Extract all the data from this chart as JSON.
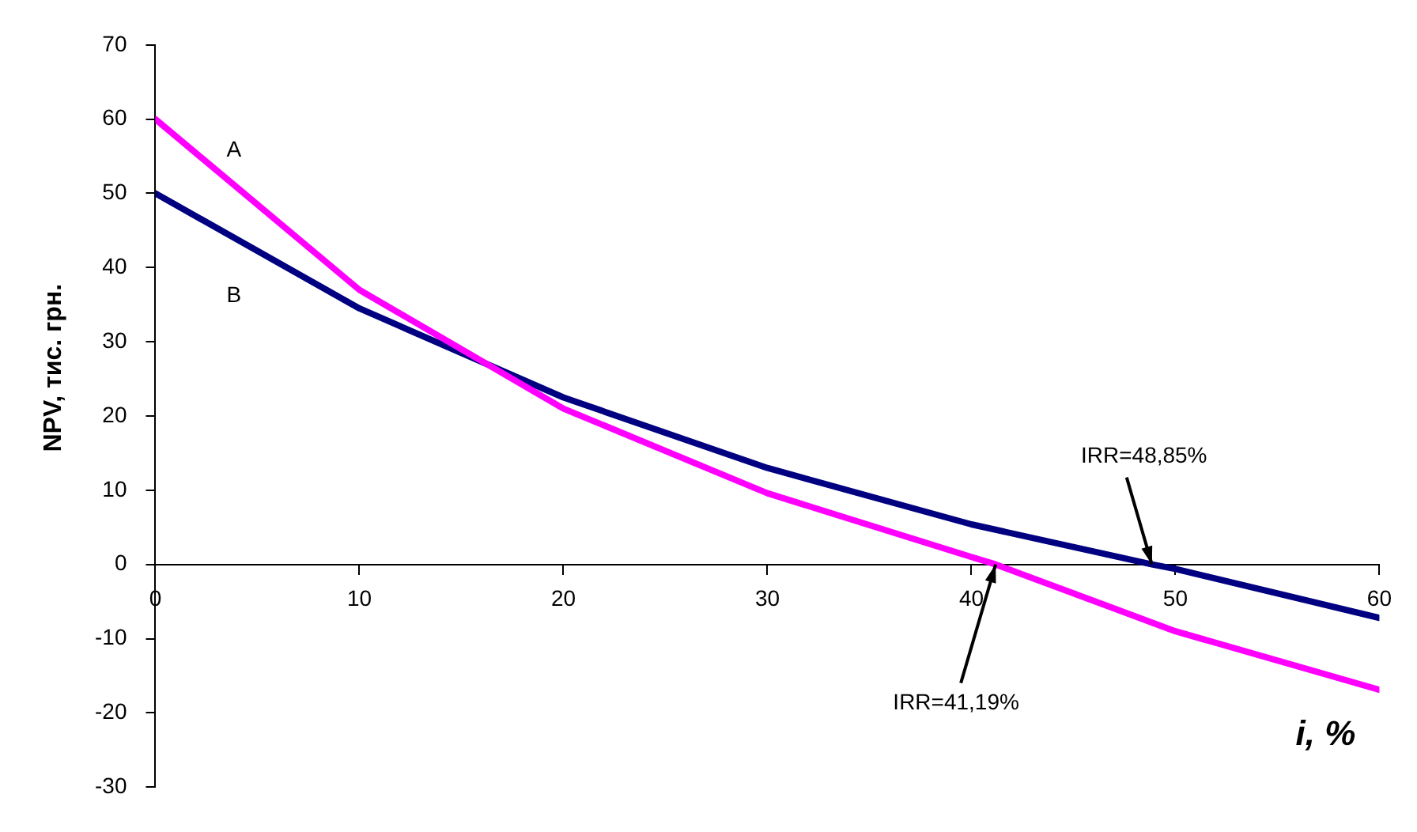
{
  "chart_data": {
    "type": "line",
    "xlabel": "i, %",
    "ylabel": "NPV, тис. грн.",
    "xlim": [
      0,
      60
    ],
    "xticks": [
      0,
      10,
      20,
      30,
      40,
      50,
      60
    ],
    "ylim": [
      -30,
      70
    ],
    "yticks": [
      -30,
      -20,
      -10,
      0,
      10,
      20,
      30,
      40,
      50,
      60,
      70
    ],
    "grid": false,
    "legend": false,
    "marker": "none",
    "line_style": "solid",
    "series": [
      {
        "name": "A",
        "color": "#ff00ff",
        "x": [
          0,
          10,
          20,
          30,
          40,
          41.19,
          50,
          60
        ],
        "values": [
          60,
          37,
          21,
          9.6,
          1,
          0,
          -9,
          -16.9
        ]
      },
      {
        "name": "B",
        "color": "#000080",
        "x": [
          0,
          10,
          20,
          30,
          40,
          48.85,
          50,
          60
        ],
        "values": [
          50,
          34.5,
          22.5,
          13,
          5.4,
          0,
          -0.6,
          -7.2
        ]
      }
    ],
    "annotations": [
      {
        "text": "IRR=41,19%",
        "x": 41.19,
        "y": 0
      },
      {
        "text": "IRR=48,85%",
        "x": 48.85,
        "y": 0
      }
    ]
  }
}
